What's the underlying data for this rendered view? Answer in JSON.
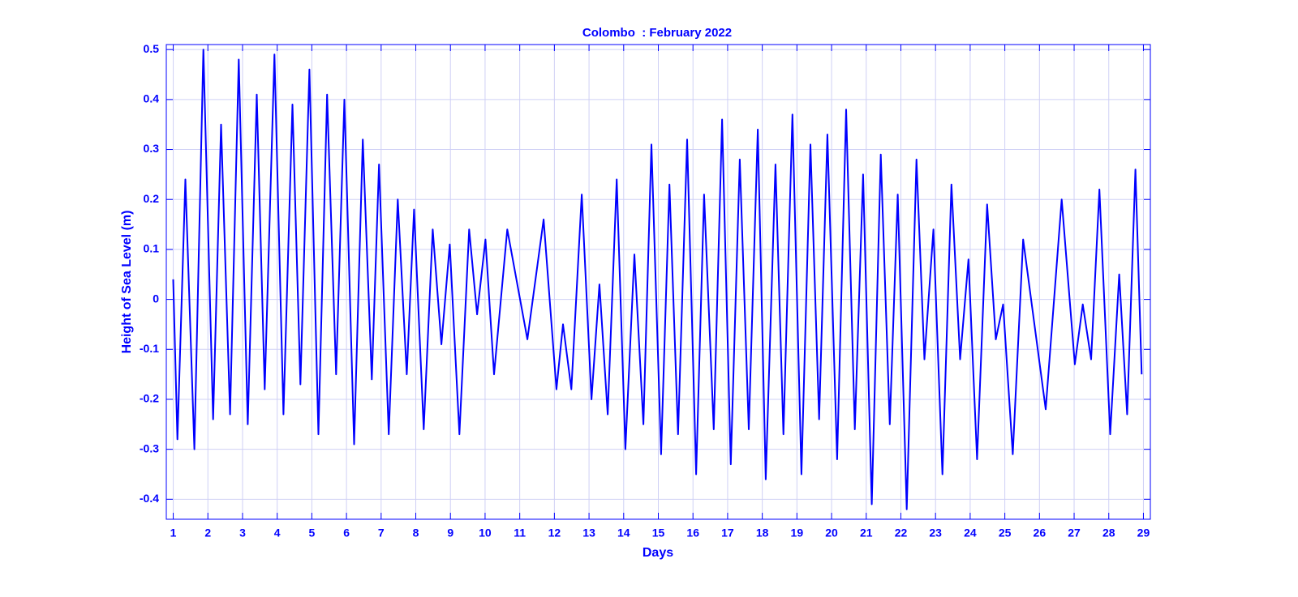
{
  "chart_data": {
    "type": "line",
    "title": "Colombo  : February 2022",
    "xlabel": "Days",
    "ylabel": "Height of Sea Level (m)",
    "color": "#0000ff",
    "grid": true,
    "xlim": [
      0.8,
      29.2
    ],
    "ylim": [
      -0.44,
      0.51
    ],
    "xticks": [
      1,
      2,
      3,
      4,
      5,
      6,
      7,
      8,
      9,
      10,
      11,
      12,
      13,
      14,
      15,
      16,
      17,
      18,
      19,
      20,
      21,
      22,
      23,
      24,
      25,
      26,
      27,
      28,
      29
    ],
    "yticks": [
      -0.4,
      -0.3,
      -0.2,
      -0.1,
      0,
      0.1,
      0.2,
      0.3,
      0.4,
      0.5
    ],
    "x": [
      1.0,
      1.12,
      1.35,
      1.61,
      1.87,
      2.15,
      2.38,
      2.64,
      2.89,
      3.15,
      3.41,
      3.64,
      3.92,
      4.18,
      4.44,
      4.67,
      4.93,
      5.19,
      5.44,
      5.7,
      5.94,
      6.22,
      6.47,
      6.73,
      6.94,
      7.22,
      7.48,
      7.74,
      7.95,
      8.23,
      8.49,
      8.74,
      8.98,
      9.26,
      9.54,
      9.77,
      10.01,
      10.26,
      10.64,
      11.22,
      11.69,
      12.06,
      12.25,
      12.49,
      12.79,
      13.07,
      13.3,
      13.54,
      13.8,
      14.05,
      14.31,
      14.57,
      14.8,
      15.08,
      15.32,
      15.57,
      15.83,
      16.09,
      16.32,
      16.6,
      16.84,
      17.09,
      17.35,
      17.61,
      17.87,
      18.1,
      18.38,
      18.61,
      18.87,
      19.13,
      19.39,
      19.64,
      19.88,
      20.16,
      20.42,
      20.67,
      20.91,
      21.16,
      21.42,
      21.68,
      21.91,
      22.17,
      22.45,
      22.68,
      22.94,
      23.2,
      23.46,
      23.71,
      23.95,
      24.2,
      24.49,
      24.74,
      24.95,
      25.23,
      25.53,
      26.18,
      26.64,
      27.02,
      27.25,
      27.49,
      27.73,
      28.04,
      28.3,
      28.53,
      28.77,
      28.95
    ],
    "values": [
      0.04,
      -0.28,
      0.24,
      -0.3,
      0.5,
      -0.24,
      0.35,
      -0.23,
      0.48,
      -0.25,
      0.41,
      -0.18,
      0.49,
      -0.23,
      0.39,
      -0.17,
      0.46,
      -0.27,
      0.41,
      -0.15,
      0.4,
      -0.29,
      0.32,
      -0.16,
      0.27,
      -0.27,
      0.2,
      -0.15,
      0.18,
      -0.26,
      0.14,
      -0.09,
      0.11,
      -0.27,
      0.14,
      -0.03,
      0.12,
      -0.15,
      0.14,
      -0.08,
      0.16,
      -0.18,
      -0.05,
      -0.18,
      0.21,
      -0.2,
      0.03,
      -0.23,
      0.24,
      -0.3,
      0.09,
      -0.25,
      0.31,
      -0.31,
      0.23,
      -0.27,
      0.32,
      -0.35,
      0.21,
      -0.26,
      0.36,
      -0.33,
      0.28,
      -0.26,
      0.34,
      -0.36,
      0.27,
      -0.27,
      0.37,
      -0.35,
      0.31,
      -0.24,
      0.33,
      -0.32,
      0.38,
      -0.26,
      0.25,
      -0.41,
      0.29,
      -0.25,
      0.21,
      -0.42,
      0.28,
      -0.12,
      0.14,
      -0.35,
      0.23,
      -0.12,
      0.08,
      -0.32,
      0.19,
      -0.08,
      -0.01,
      -0.31,
      0.12,
      -0.22,
      0.2,
      -0.13,
      -0.01,
      -0.12,
      0.22,
      -0.27,
      0.05,
      -0.23,
      0.26,
      -0.15
    ]
  }
}
